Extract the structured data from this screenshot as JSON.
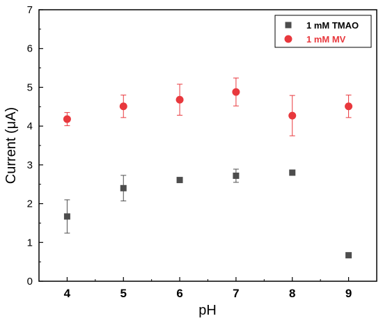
{
  "chart_data": {
    "type": "scatter",
    "title": "",
    "xlabel": "pH",
    "ylabel": "Current (μA)",
    "xlim": [
      3.5,
      9.5
    ],
    "ylim": [
      0,
      7
    ],
    "xticks": [
      4,
      5,
      6,
      7,
      8,
      9
    ],
    "yticks": [
      0,
      1,
      2,
      3,
      4,
      5,
      6,
      7
    ],
    "grid": false,
    "legend_position": "top-right",
    "series": [
      {
        "name": "1 mM TMAO",
        "color": "#4d4d4d",
        "marker": "square",
        "x": [
          4,
          5,
          6,
          7,
          8,
          9
        ],
        "y": [
          1.67,
          2.4,
          2.61,
          2.72,
          2.8,
          0.67
        ],
        "err": [
          0.43,
          0.33,
          0.06,
          0.17,
          0.05,
          0.0
        ]
      },
      {
        "name": "1 mM MV",
        "color": "#e8383d",
        "marker": "circle",
        "x": [
          4,
          5,
          6,
          7,
          8,
          9
        ],
        "y": [
          4.18,
          4.51,
          4.68,
          4.88,
          4.27,
          4.51
        ],
        "err": [
          0.17,
          0.29,
          0.4,
          0.36,
          0.52,
          0.29
        ]
      }
    ]
  }
}
